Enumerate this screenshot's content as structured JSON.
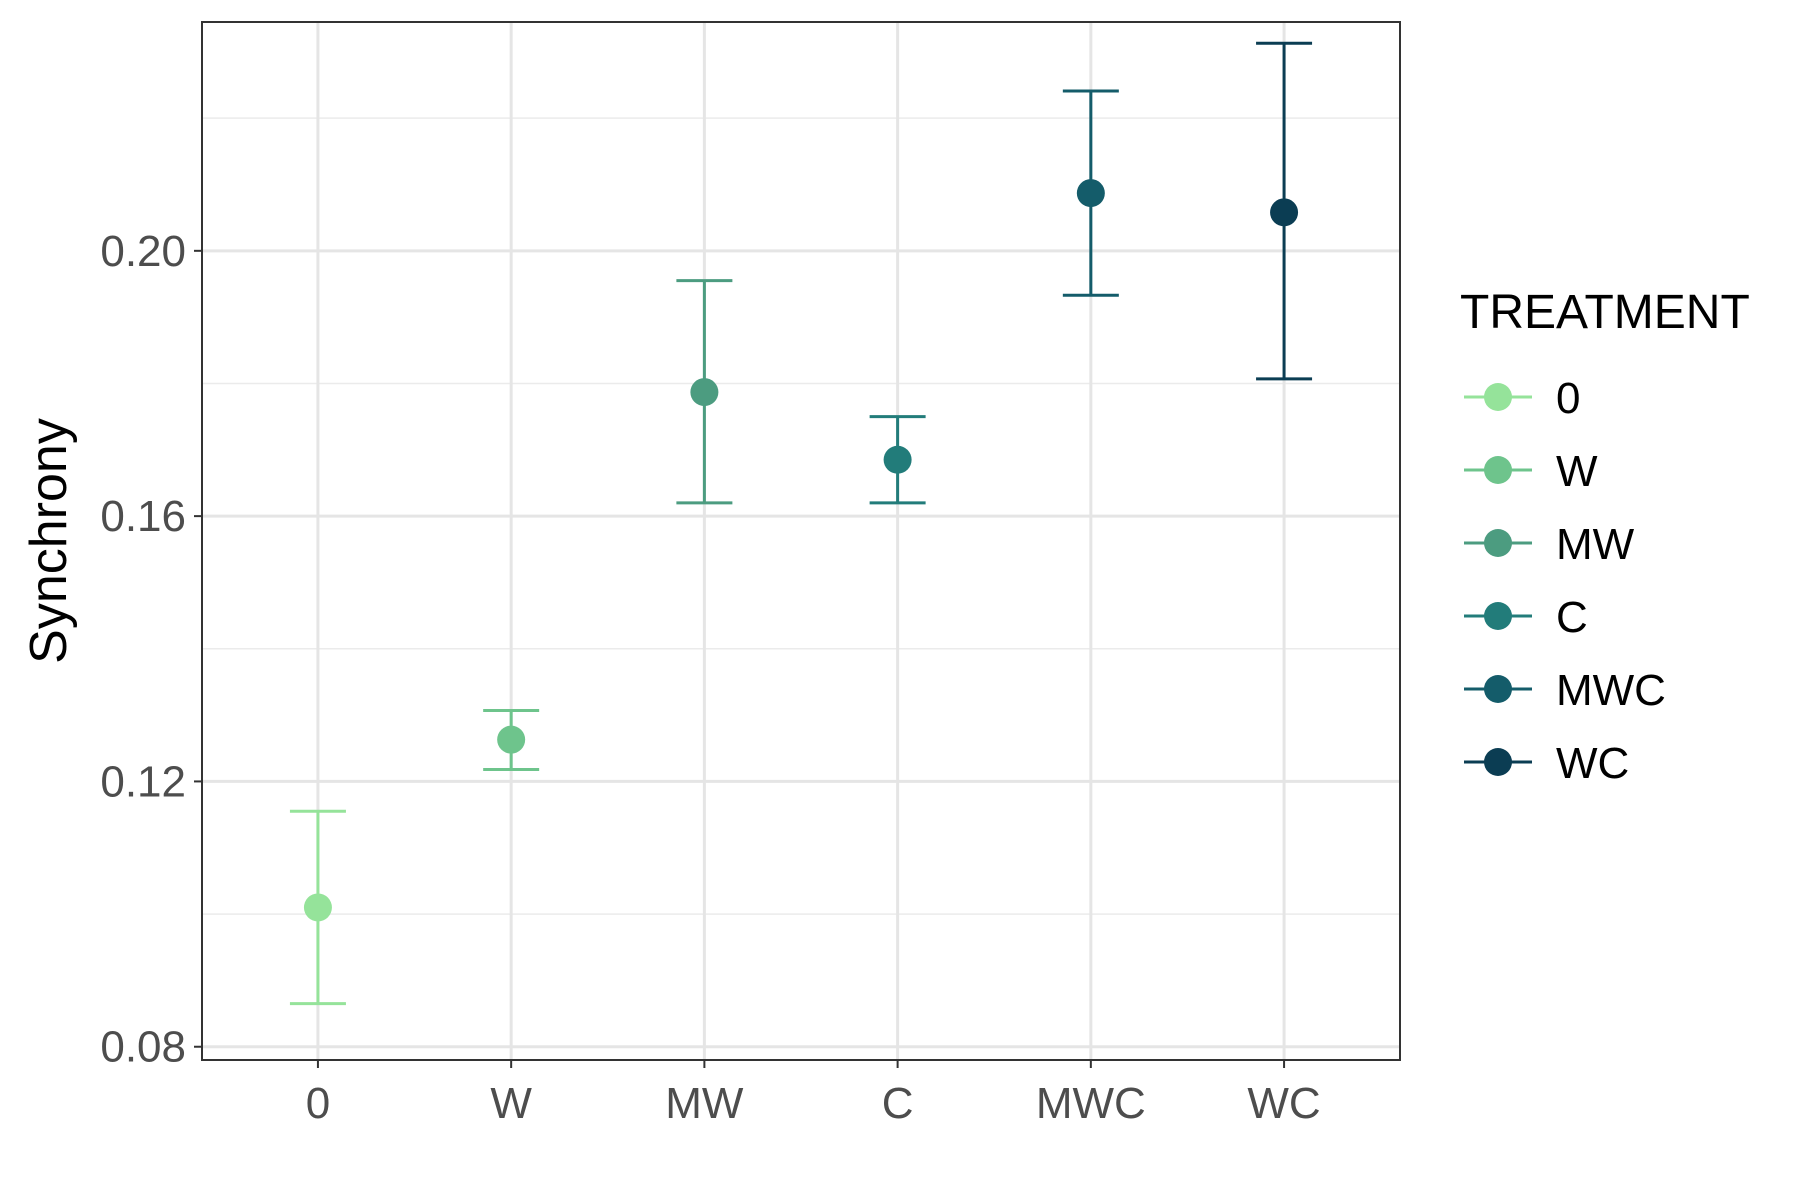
{
  "chart_data": {
    "type": "scatter",
    "subtype": "point-errorbar",
    "title": "",
    "xlabel": "",
    "ylabel": "Synchrony",
    "categories": [
      "0",
      "W",
      "MW",
      "C",
      "MWC",
      "WC"
    ],
    "points": [
      {
        "category": "0",
        "y": 0.101,
        "ymin": 0.0865,
        "ymax": 0.1155
      },
      {
        "category": "W",
        "y": 0.1263,
        "ymin": 0.1218,
        "ymax": 0.1307
      },
      {
        "category": "MW",
        "y": 0.1787,
        "ymin": 0.162,
        "ymax": 0.1955
      },
      {
        "category": "C",
        "y": 0.1685,
        "ymin": 0.162,
        "ymax": 0.175
      },
      {
        "category": "MWC",
        "y": 0.2087,
        "ymin": 0.1933,
        "ymax": 0.2241
      },
      {
        "category": "WC",
        "y": 0.2058,
        "ymin": 0.1807,
        "ymax": 0.2313
      }
    ],
    "ylim": [
      0.078,
      0.2345
    ],
    "yticks": [
      0.08,
      0.12,
      0.16,
      0.2
    ],
    "ytick_labels": [
      "0.08",
      "0.12",
      "0.16",
      "0.20"
    ],
    "grid": true,
    "legend": {
      "title": "TREATMENT",
      "position": "right",
      "items": [
        "0",
        "W",
        "MW",
        "C",
        "MWC",
        "WC"
      ]
    },
    "colors": [
      "#95e39a",
      "#6ec48c",
      "#4c9c80",
      "#227c7a",
      "#145c6a",
      "#0b3d53"
    ]
  }
}
